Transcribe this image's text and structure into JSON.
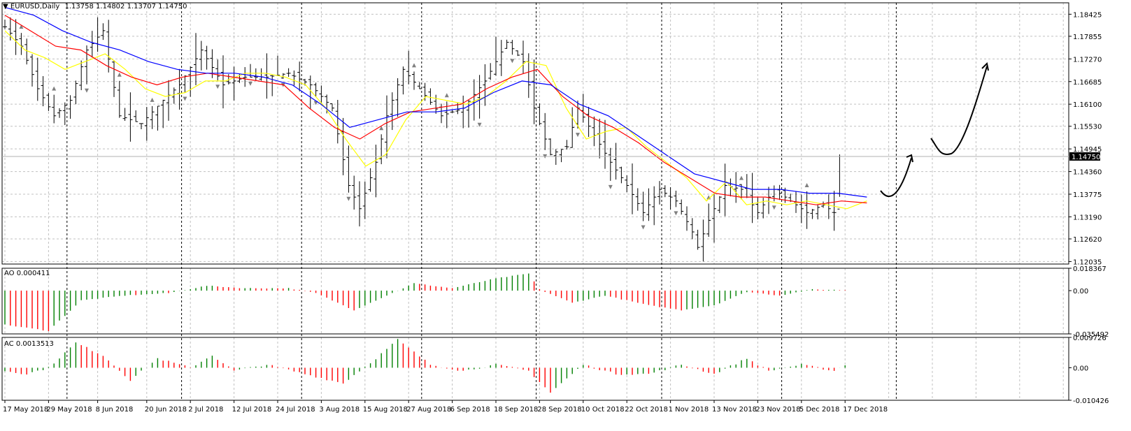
{
  "header": {
    "symbol": "EURUSD,Daily",
    "ohlc": "1.13758 1.14802 1.13707 1.14750",
    "dropdown_arrow": "▼"
  },
  "colors": {
    "background": "#ffffff",
    "grid": "#c0c0c0",
    "price_bars": "#000000",
    "ma_fast": "#ffff00",
    "ma_mid": "#ff0000",
    "ma_slow": "#0000ff",
    "osc_up": "#008000",
    "osc_down": "#ff0000",
    "fractal": "#808080",
    "price_tag_bg": "#000000",
    "price_tag_text": "#ffffff"
  },
  "chart_data": [
    {
      "type": "line",
      "panel": "price",
      "price_axis_ticks": [
        "1.18425",
        "1.17855",
        "1.17270",
        "1.16685",
        "1.16100",
        "1.15530",
        "1.14945",
        "1.14360",
        "1.13775",
        "1.13190",
        "1.12620",
        "1.12035"
      ],
      "ylim": [
        1.1197,
        1.1872
      ],
      "current_price": "1.14750",
      "x_tick_labels": [
        "17 May 2018",
        "29 May 2018",
        "8 Jun 2018",
        "20 Jun 2018",
        "2 Jul 2018",
        "12 Jul 2018",
        "24 Jul 2018",
        "3 Aug 2018",
        "15 Aug 2018",
        "27 Aug 2018",
        "6 Sep 2018",
        "18 Sep 2018",
        "28 Sep 2018",
        "10 Oct 2018",
        "22 Oct 2018",
        "1 Nov 2018",
        "13 Nov 2018",
        "23 Nov 2018",
        "5 Dec 2018",
        "17 Dec 2018"
      ],
      "x_tick_bar_index": [
        0,
        8,
        17,
        26,
        34,
        42,
        50,
        58,
        66,
        74,
        82,
        90,
        98,
        106,
        114,
        122,
        130,
        138,
        146,
        154
      ],
      "period_separator_bar_index": [
        11,
        32,
        54,
        76,
        97,
        120,
        142,
        163
      ],
      "close_anchors": [
        [
          0,
          1.181
        ],
        [
          3,
          1.176
        ],
        [
          6,
          1.165
        ],
        [
          9,
          1.158
        ],
        [
          12,
          1.162
        ],
        [
          15,
          1.175
        ],
        [
          18,
          1.18
        ],
        [
          21,
          1.158
        ],
        [
          25,
          1.156
        ],
        [
          29,
          1.162
        ],
        [
          32,
          1.166
        ],
        [
          36,
          1.175
        ],
        [
          40,
          1.166
        ],
        [
          44,
          1.168
        ],
        [
          48,
          1.168
        ],
        [
          52,
          1.169
        ],
        [
          56,
          1.166
        ],
        [
          60,
          1.16
        ],
        [
          63,
          1.14
        ],
        [
          65,
          1.134
        ],
        [
          68,
          1.146
        ],
        [
          70,
          1.158
        ],
        [
          73,
          1.17
        ],
        [
          76,
          1.165
        ],
        [
          80,
          1.158
        ],
        [
          84,
          1.16
        ],
        [
          88,
          1.167
        ],
        [
          92,
          1.177
        ],
        [
          95,
          1.172
        ],
        [
          97,
          1.16
        ],
        [
          100,
          1.148
        ],
        [
          103,
          1.15
        ],
        [
          105,
          1.16
        ],
        [
          108,
          1.153
        ],
        [
          111,
          1.146
        ],
        [
          114,
          1.14
        ],
        [
          117,
          1.133
        ],
        [
          120,
          1.139
        ],
        [
          123,
          1.136
        ],
        [
          126,
          1.128
        ],
        [
          127,
          1.124
        ],
        [
          129,
          1.131
        ],
        [
          132,
          1.14
        ],
        [
          135,
          1.139
        ],
        [
          138,
          1.133
        ],
        [
          141,
          1.139
        ],
        [
          144,
          1.136
        ],
        [
          147,
          1.133
        ],
        [
          150,
          1.135
        ],
        [
          152,
          1.133
        ],
        [
          153,
          1.1476
        ]
      ],
      "series": [
        {
          "name": "",
          "color": "yellow",
          "values": [
            1.18,
            1.175,
            1.173,
            1.17,
            1.172,
            1.174,
            1.17,
            1.165,
            1.163,
            1.164,
            1.167,
            1.167,
            1.169,
            1.169,
            1.168,
            1.166,
            1.16,
            1.152,
            1.145,
            1.148,
            1.157,
            1.163,
            1.162,
            1.161,
            1.163,
            1.167,
            1.172,
            1.171,
            1.16,
            1.152,
            1.154,
            1.155,
            1.15,
            1.146,
            1.142,
            1.136,
            1.141,
            1.135,
            1.136,
            1.135,
            1.136,
            1.135,
            1.134,
            1.136
          ]
        },
        {
          "name": "",
          "color": "red",
          "values": [
            1.184,
            1.18,
            1.176,
            1.175,
            1.171,
            1.168,
            1.166,
            1.168,
            1.169,
            1.168,
            1.167,
            1.166,
            1.16,
            1.155,
            1.152,
            1.156,
            1.159,
            1.16,
            1.161,
            1.165,
            1.168,
            1.17,
            1.163,
            1.158,
            1.155,
            1.151,
            1.146,
            1.142,
            1.138,
            1.137,
            1.137,
            1.136,
            1.135,
            1.136,
            1.1355
          ]
        },
        {
          "name": "",
          "color": "blue",
          "values": [
            1.186,
            1.184,
            1.18,
            1.177,
            1.175,
            1.172,
            1.17,
            1.169,
            1.169,
            1.168,
            1.166,
            1.161,
            1.155,
            1.157,
            1.159,
            1.159,
            1.16,
            1.164,
            1.167,
            1.166,
            1.161,
            1.158,
            1.153,
            1.148,
            1.143,
            1.141,
            1.139,
            1.139,
            1.138,
            1.138,
            1.137
          ]
        }
      ]
    },
    {
      "type": "bar",
      "panel": "AO",
      "label": "AO 0.000411",
      "axis_ticks": [
        "0.018367",
        "0.00",
        "-0.035492"
      ],
      "ylim": [
        -0.035492,
        0.018367
      ],
      "anchors": [
        [
          0,
          -0.028
        ],
        [
          8,
          -0.033
        ],
        [
          14,
          -0.008
        ],
        [
          22,
          -0.004
        ],
        [
          30,
          -0.002
        ],
        [
          37,
          0.004
        ],
        [
          44,
          0.002
        ],
        [
          52,
          0.002
        ],
        [
          57,
          -0.002
        ],
        [
          64,
          -0.016
        ],
        [
          70,
          -0.004
        ],
        [
          75,
          0.006
        ],
        [
          82,
          0.002
        ],
        [
          90,
          0.01
        ],
        [
          96,
          0.014
        ],
        [
          98,
          0.001
        ],
        [
          104,
          -0.01
        ],
        [
          110,
          -0.004
        ],
        [
          118,
          -0.012
        ],
        [
          124,
          -0.016
        ],
        [
          130,
          -0.012
        ],
        [
          136,
          -0.001
        ],
        [
          142,
          -0.004
        ],
        [
          148,
          0.001
        ],
        [
          154,
          0.0004
        ]
      ]
    },
    {
      "type": "bar",
      "panel": "AC",
      "label": "AC 0.0013513",
      "axis_ticks": [
        "0.009726",
        "0.00",
        "-0.010426"
      ],
      "ylim": [
        -0.010426,
        0.009726
      ],
      "anchors": [
        [
          0,
          -0.001
        ],
        [
          4,
          -0.002
        ],
        [
          8,
          0.0
        ],
        [
          13,
          0.008
        ],
        [
          18,
          0.004
        ],
        [
          23,
          -0.004
        ],
        [
          28,
          0.003
        ],
        [
          34,
          0.0
        ],
        [
          38,
          0.004
        ],
        [
          42,
          -0.001
        ],
        [
          48,
          0.001
        ],
        [
          55,
          -0.002
        ],
        [
          62,
          -0.005
        ],
        [
          68,
          0.003
        ],
        [
          72,
          0.009
        ],
        [
          78,
          0.001
        ],
        [
          84,
          -0.001
        ],
        [
          90,
          0.001
        ],
        [
          96,
          -0.001
        ],
        [
          100,
          -0.008
        ],
        [
          106,
          0.001
        ],
        [
          112,
          -0.002
        ],
        [
          118,
          -0.002
        ],
        [
          124,
          0.001
        ],
        [
          130,
          -0.002
        ],
        [
          136,
          0.003
        ],
        [
          140,
          -0.001
        ],
        [
          146,
          0.001
        ],
        [
          152,
          -0.001
        ],
        [
          154,
          0.001
        ]
      ]
    }
  ]
}
